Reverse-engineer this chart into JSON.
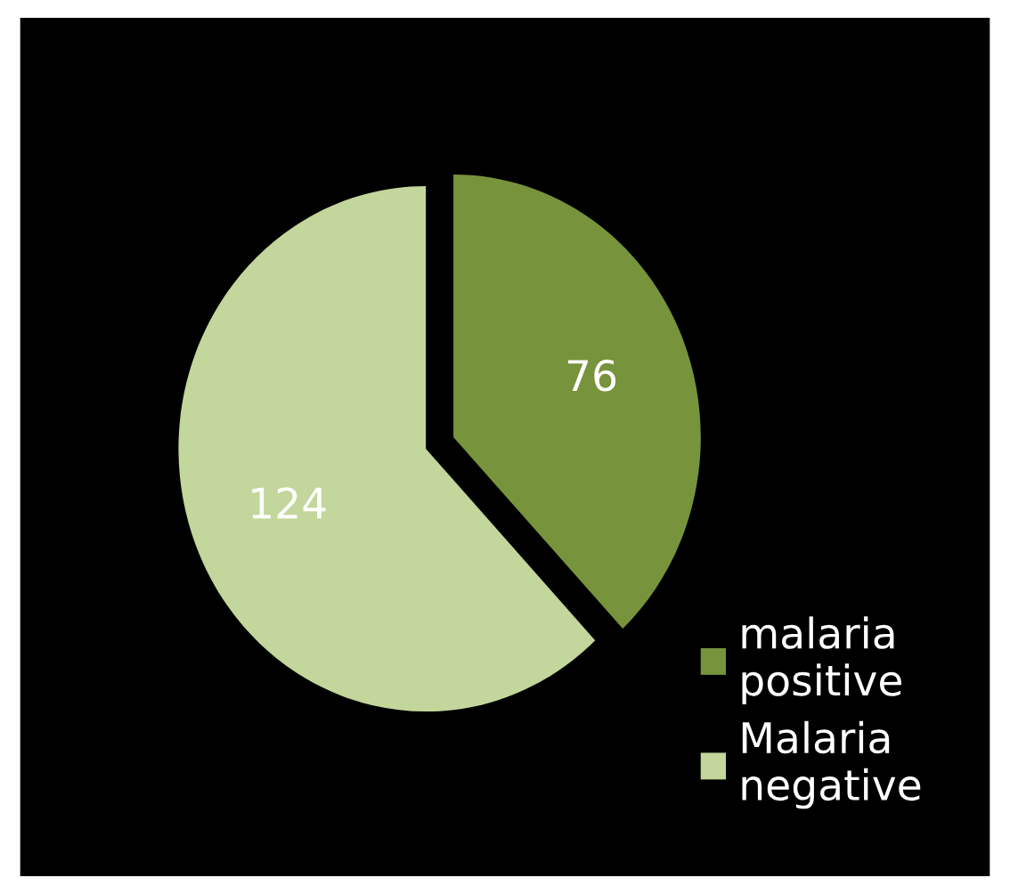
{
  "chart_data": {
    "type": "pie",
    "categories": [
      "malaria positive",
      "Malaria negative"
    ],
    "values": [
      76,
      124
    ],
    "colors": [
      "#77933c",
      "#c3d69b"
    ],
    "data_labels": true,
    "legend": "bottom right"
  }
}
